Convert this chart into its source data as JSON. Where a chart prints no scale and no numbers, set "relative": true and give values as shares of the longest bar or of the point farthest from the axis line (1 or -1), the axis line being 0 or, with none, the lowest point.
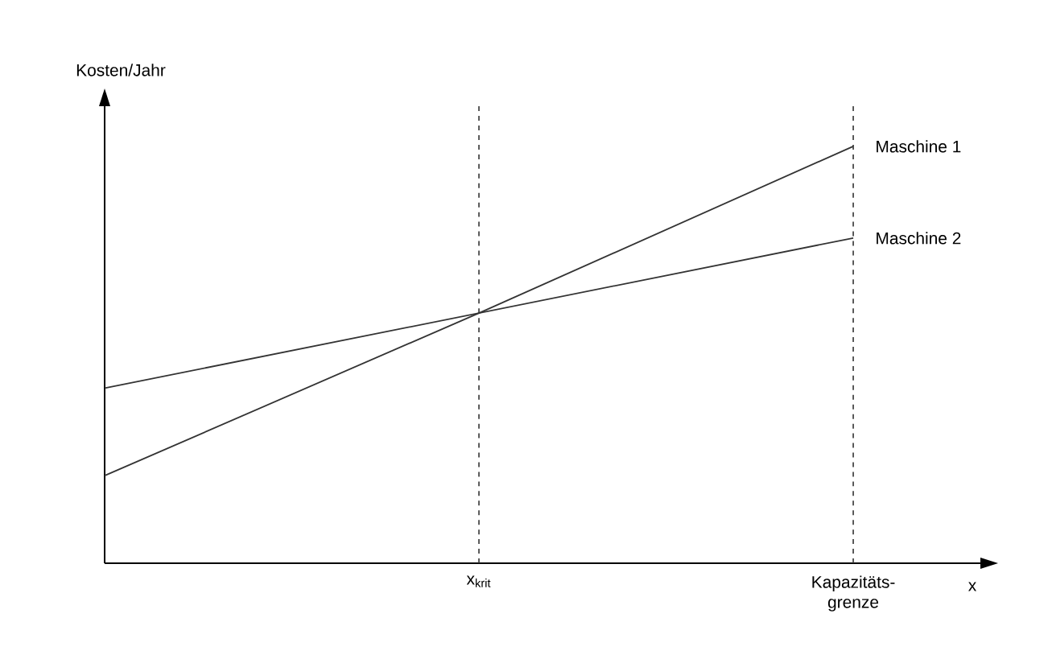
{
  "chart_data": {
    "type": "line",
    "relative": true,
    "xlabel": "x",
    "ylabel": "Kosten/Jahr",
    "categories": [
      null,
      "x$_{krit}$",
      "Kapazitäts- grenze"
    ],
    "series": [
      {
        "name": "Maschine 1",
        "color": "#333333",
        "values": [
          0.21,
          0.6,
          1.0
        ]
      },
      {
        "name": "Maschine 2",
        "color": "#333333",
        "values": [
          0.42,
          0.6,
          0.78
        ]
      }
    ],
    "ref_lines": [
      {
        "axis": "x",
        "value": "x$_{krit}$",
        "line_style": "dashed"
      },
      {
        "axis": "x",
        "value": "Kapazitäts- grenze",
        "line_style": "dashed"
      }
    ],
    "legend": false,
    "marker": "none",
    "line_style": "solid"
  }
}
